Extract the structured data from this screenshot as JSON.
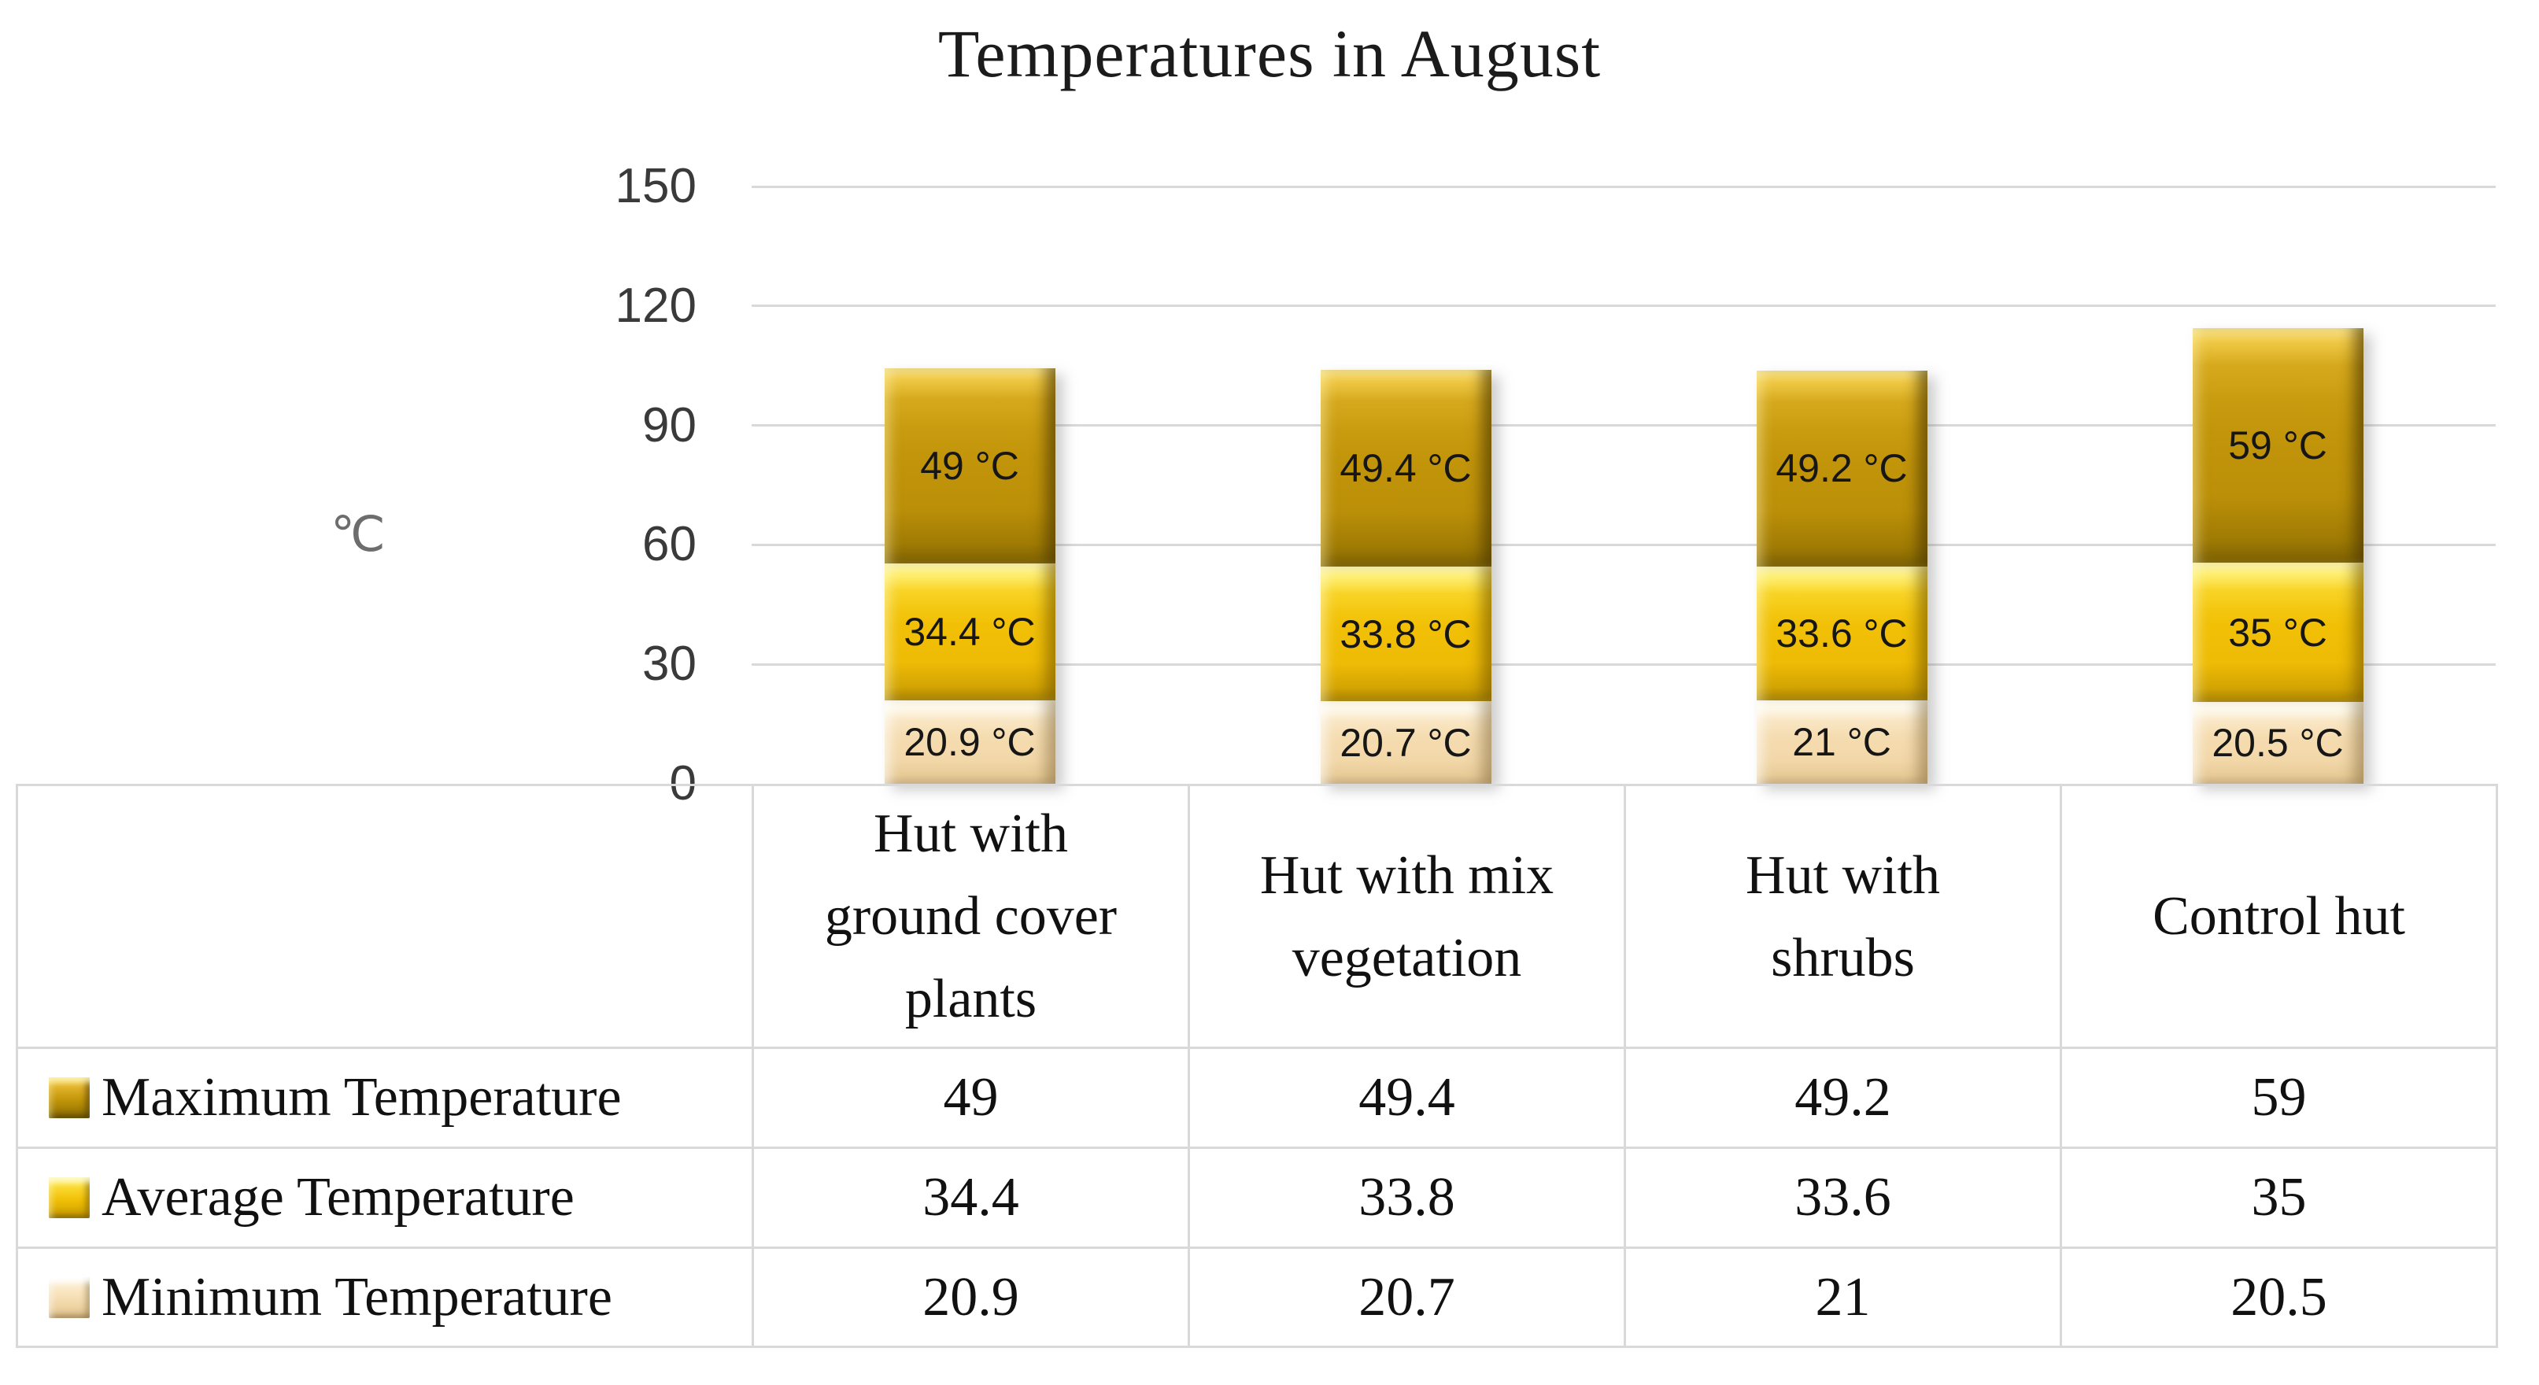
{
  "title": "Temperatures in August",
  "y_axis": {
    "unit_label": "℃",
    "tick_labels": [
      "150",
      "120",
      "90",
      "60",
      "30",
      "0"
    ]
  },
  "chart_data": {
    "type": "bar",
    "stacked": true,
    "title": "Temperatures in August",
    "ylabel": "℃",
    "xlabel": "",
    "ylim": [
      0,
      150
    ],
    "ytick_step": 30,
    "grid": true,
    "legend_position": "left-of-table-rows",
    "categories": [
      "Hut with ground cover plants",
      "Hut with mix vegetation",
      "Hut with shrubs",
      "Control hut"
    ],
    "series": [
      {
        "name": "Minimum Temperature",
        "values": [
          20.9,
          20.7,
          21,
          20.5
        ],
        "bar_labels": [
          "20.9 °C",
          "20.7 °C",
          "21 °C",
          "20.5 °C"
        ],
        "color": "#F5DCB0"
      },
      {
        "name": "Average Temperature",
        "values": [
          34.4,
          33.8,
          33.6,
          35
        ],
        "bar_labels": [
          "34.4 °C",
          "33.8 °C",
          "33.6 °C",
          "35 °C"
        ],
        "color": "#F1C006"
      },
      {
        "name": "Maximum Temperature",
        "values": [
          49,
          49.4,
          49.2,
          59
        ],
        "bar_labels": [
          "49 °C",
          "49.4 °C",
          "49.2 °C",
          "59 °C"
        ],
        "color": "#C2950A"
      }
    ]
  },
  "table": {
    "category_header_lines": [
      [
        "Hut with",
        "ground cover",
        "plants"
      ],
      [
        "Hut with mix",
        "vegetation"
      ],
      [
        "Hut with",
        "shrubs"
      ],
      [
        "Control hut"
      ]
    ],
    "rows": [
      {
        "label": "Maximum Temperature",
        "marker": "max",
        "values": [
          "49",
          "49.4",
          "49.2",
          "59"
        ]
      },
      {
        "label": "Average Temperature",
        "marker": "avg",
        "values": [
          "34.4",
          "33.8",
          "33.6",
          "35"
        ]
      },
      {
        "label": "Minimum Temperature",
        "marker": "min",
        "values": [
          "20.9",
          "20.7",
          "21",
          "20.5"
        ]
      }
    ]
  },
  "colors": {
    "grid_and_borders": "#D9D9D9",
    "max_series": "#C2950A",
    "avg_series": "#F1C006",
    "min_series": "#F5DCB0",
    "title_text": "#1B1B1B",
    "tick_text": "#3A3A3A",
    "unit_text": "#6D6D6D"
  }
}
